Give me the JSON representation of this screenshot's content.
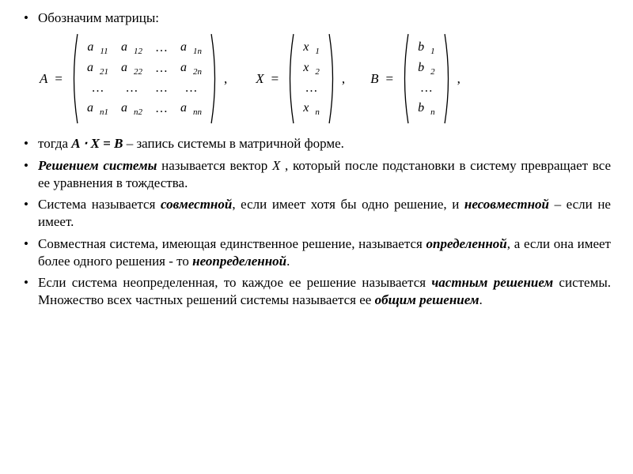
{
  "bullets": {
    "b1": "Обозначим матрицы:",
    "b2_pre": "тогда  ",
    "b2_eq": "A ⋅ X = B",
    "b2_post": "  – запись системы в матричной форме.",
    "b3_pre": " ",
    "b3_term": "Решением  системы",
    "b3_mid1": "  называется  вектор  ",
    "b3_X": "X",
    "b3_post": " ,  который  после подстановки  в систему превращает все ее уравнения в тождества.",
    "b4_pre": "Система называется ",
    "b4_t1": "совместной",
    "b4_mid": ", если имеет хотя бы одно решение, и ",
    "b4_t2": "несовместной",
    "b4_post": " – если не имеет.",
    "b5_pre": " Совместная  система,  имеющая  единственное  решение,  называется ",
    "b5_t1": "определенной",
    "b5_mid": ",   а если она имеет более одного решения - то ",
    "b5_t2": "неопределенной",
    "b5_post": ".",
    "b6_pre": "Если система неопределенная, то каждое ее решение называется ",
    "b6_t1": "частным решением",
    "b6_mid": " системы.   Множество  всех  частных  решений системы  называется  ее  ",
    "b6_t2": "общим решением",
    "b6_post": "."
  },
  "matrices": {
    "A_label": "A",
    "X_label": "X",
    "B_label": "B",
    "A": [
      [
        "a",
        "11",
        "a",
        "12",
        "…",
        "",
        "a",
        "1n"
      ],
      [
        "a",
        "21",
        "a",
        "22",
        "…",
        "",
        "a",
        "2n"
      ],
      [
        "…",
        "",
        "…",
        "",
        "…",
        "",
        "…",
        ""
      ],
      [
        "a",
        "n1",
        "a",
        "n2",
        "…",
        "",
        "a",
        "nn"
      ]
    ],
    "X": [
      [
        "x",
        "1"
      ],
      [
        "x",
        "2"
      ],
      [
        "…",
        ""
      ],
      [
        "x",
        "n"
      ]
    ],
    "B": [
      [
        "b",
        "1"
      ],
      [
        "b",
        "2"
      ],
      [
        "…",
        ""
      ],
      [
        "b",
        "n"
      ]
    ]
  },
  "style": {
    "paren_stroke": "#000000",
    "paren_width": 1.2
  }
}
